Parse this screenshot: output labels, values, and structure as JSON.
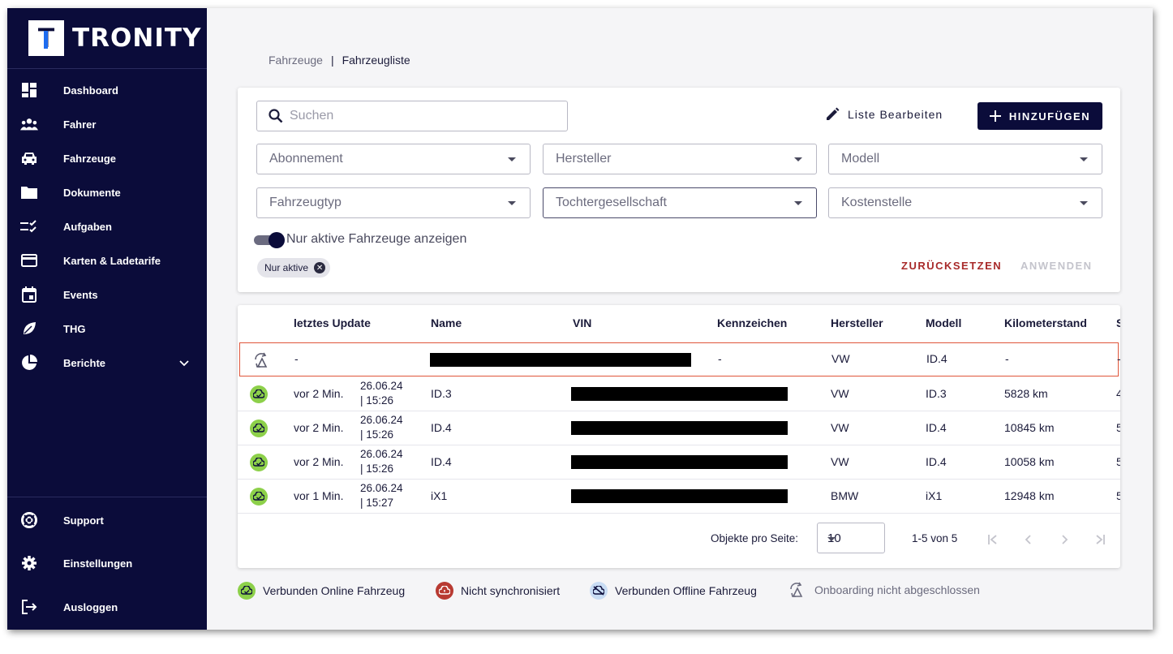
{
  "brand": {
    "logo_letter": "T",
    "name": "TRONITY"
  },
  "sidebar": {
    "items": [
      {
        "label": "Dashboard",
        "icon": "dashboard-icon"
      },
      {
        "label": "Fahrer",
        "icon": "people-icon"
      },
      {
        "label": "Fahrzeuge",
        "icon": "car-icon"
      },
      {
        "label": "Dokumente",
        "icon": "folder-icon"
      },
      {
        "label": "Aufgaben",
        "icon": "checklist-icon"
      },
      {
        "label": "Karten & Ladetarife",
        "icon": "credit-card-icon"
      },
      {
        "label": "Events",
        "icon": "calendar-icon"
      },
      {
        "label": "THG",
        "icon": "leaf-icon"
      },
      {
        "label": "Berichte",
        "icon": "pie-chart-icon"
      }
    ],
    "bottom_items": [
      {
        "label": "Support",
        "icon": "lifebuoy-icon"
      },
      {
        "label": "Einstellungen",
        "icon": "gear-icon"
      },
      {
        "label": "Ausloggen",
        "icon": "logout-icon"
      }
    ]
  },
  "breadcrumb": {
    "parent": "Fahrzeuge",
    "separator": "|",
    "current": "Fahrzeugliste"
  },
  "filters": {
    "search_placeholder": "Suchen",
    "edit_list_label": "Liste Bearbeiten",
    "add_label": "HINZUFÜGEN",
    "selects": [
      "Abonnement",
      "Hersteller",
      "Modell",
      "Fahrzeugtyp",
      "Tochtergesellschaft",
      "Kostenstelle"
    ],
    "toggle_label": "Nur aktive Fahrzeuge anzeigen",
    "toggle_on": true,
    "chip_label": "Nur aktive",
    "reset_label": "ZURÜCKSETZEN",
    "apply_label": "ANWENDEN"
  },
  "table": {
    "headers": [
      "letztes Update",
      "Name",
      "VIN",
      "Kennzeichen",
      "Hersteller",
      "Modell",
      "Kilometerstand",
      "S"
    ],
    "rows": [
      {
        "status": "onboarding",
        "update": "-",
        "update_date": "",
        "update_time": "",
        "name": "",
        "kennzeichen": "-",
        "hersteller": "VW",
        "modell": "ID.4",
        "km": "-",
        "extra": "-"
      },
      {
        "status": "online",
        "update": "vor 2 Min.",
        "update_date": "26.06.24",
        "update_time": "| 15:26",
        "name": "ID.3",
        "kennzeichen": "",
        "hersteller": "VW",
        "modell": "ID.3",
        "km": "5828 km",
        "extra": "4"
      },
      {
        "status": "online",
        "update": "vor 2 Min.",
        "update_date": "26.06.24",
        "update_time": "| 15:26",
        "name": "ID.4",
        "kennzeichen": "",
        "hersteller": "VW",
        "modell": "ID.4",
        "km": "10845 km",
        "extra": "5"
      },
      {
        "status": "online",
        "update": "vor 2 Min.",
        "update_date": "26.06.24",
        "update_time": "| 15:26",
        "name": "ID.4",
        "kennzeichen": "",
        "hersteller": "VW",
        "modell": "ID.4",
        "km": "10058 km",
        "extra": "5"
      },
      {
        "status": "online",
        "update": "vor 1 Min.",
        "update_date": "26.06.24",
        "update_time": "| 15:27",
        "name": "iX1",
        "kennzeichen": "",
        "hersteller": "BMW",
        "modell": "iX1",
        "km": "12948 km",
        "extra": "5"
      }
    ]
  },
  "pagination": {
    "per_page_label": "Objekte pro Seite:",
    "per_page": "10",
    "range": "1-5 von 5"
  },
  "legend": {
    "online": "Verbunden Online Fahrzeug",
    "not_synced": "Nicht synchronisiert",
    "offline": "Verbunden Offline Fahrzeug",
    "onboarding": "Onboarding nicht abgeschlossen"
  },
  "colors": {
    "sidebar": "#0b0c3a",
    "online": "#8dd04a",
    "not_synced": "#b83a32",
    "offline": "#c8dcf4",
    "reset": "#a82a2a",
    "highlight": "#e0553a"
  }
}
